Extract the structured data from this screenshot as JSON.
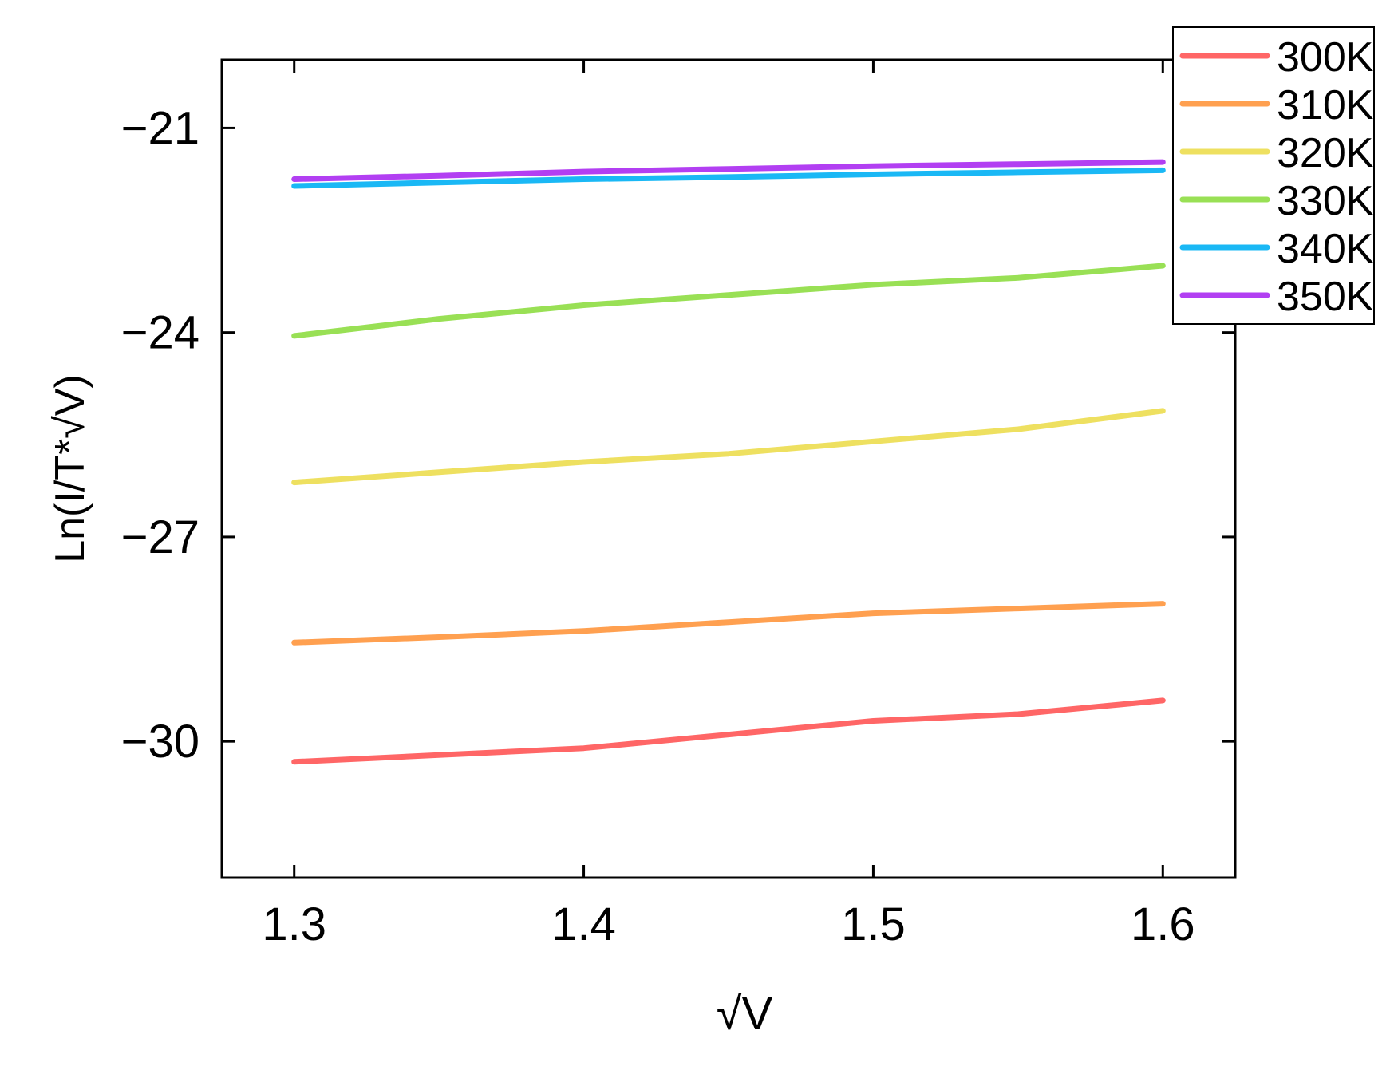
{
  "chart_data": {
    "type": "line",
    "xlabel": "√V",
    "ylabel": "Ln(I/T*√V)",
    "xlim": [
      1.275,
      1.625
    ],
    "ylim": [
      -32,
      -20
    ],
    "xticks": [
      1.3,
      1.4,
      1.5,
      1.6
    ],
    "yticks": [
      -21,
      -24,
      -27,
      -30
    ],
    "xtick_labels": [
      "1.3",
      "1.4",
      "1.5",
      "1.6"
    ],
    "ytick_labels": [
      "−21",
      "−24",
      "−27",
      "−30"
    ],
    "legend_position": "top-right",
    "grid": false,
    "series": [
      {
        "name": "300K",
        "color": "#ff6666",
        "x": [
          1.3,
          1.35,
          1.4,
          1.45,
          1.5,
          1.55,
          1.6
        ],
        "y": [
          -30.3,
          -30.2,
          -30.1,
          -29.9,
          -29.7,
          -29.6,
          -29.4
        ]
      },
      {
        "name": "310K",
        "color": "#ffa050",
        "x": [
          1.3,
          1.35,
          1.4,
          1.45,
          1.5,
          1.55,
          1.6
        ],
        "y": [
          -28.55,
          -28.47,
          -28.38,
          -28.25,
          -28.12,
          -28.05,
          -27.98
        ]
      },
      {
        "name": "320K",
        "color": "#eee060",
        "x": [
          1.3,
          1.35,
          1.4,
          1.45,
          1.5,
          1.55,
          1.6
        ],
        "y": [
          -26.2,
          -26.05,
          -25.9,
          -25.78,
          -25.6,
          -25.42,
          -25.15
        ]
      },
      {
        "name": "330K",
        "color": "#99e055",
        "x": [
          1.3,
          1.35,
          1.4,
          1.45,
          1.5,
          1.55,
          1.6
        ],
        "y": [
          -24.05,
          -23.8,
          -23.6,
          -23.45,
          -23.3,
          -23.2,
          -23.02
        ]
      },
      {
        "name": "340K",
        "color": "#1ab8f5",
        "x": [
          1.3,
          1.35,
          1.4,
          1.45,
          1.5,
          1.55,
          1.6
        ],
        "y": [
          -21.85,
          -21.8,
          -21.75,
          -21.72,
          -21.68,
          -21.65,
          -21.62
        ]
      },
      {
        "name": "350K",
        "color": "#b23ff2",
        "x": [
          1.3,
          1.35,
          1.4,
          1.45,
          1.5,
          1.55,
          1.6
        ],
        "y": [
          -21.75,
          -21.7,
          -21.64,
          -21.6,
          -21.56,
          -21.53,
          -21.5
        ]
      }
    ]
  }
}
